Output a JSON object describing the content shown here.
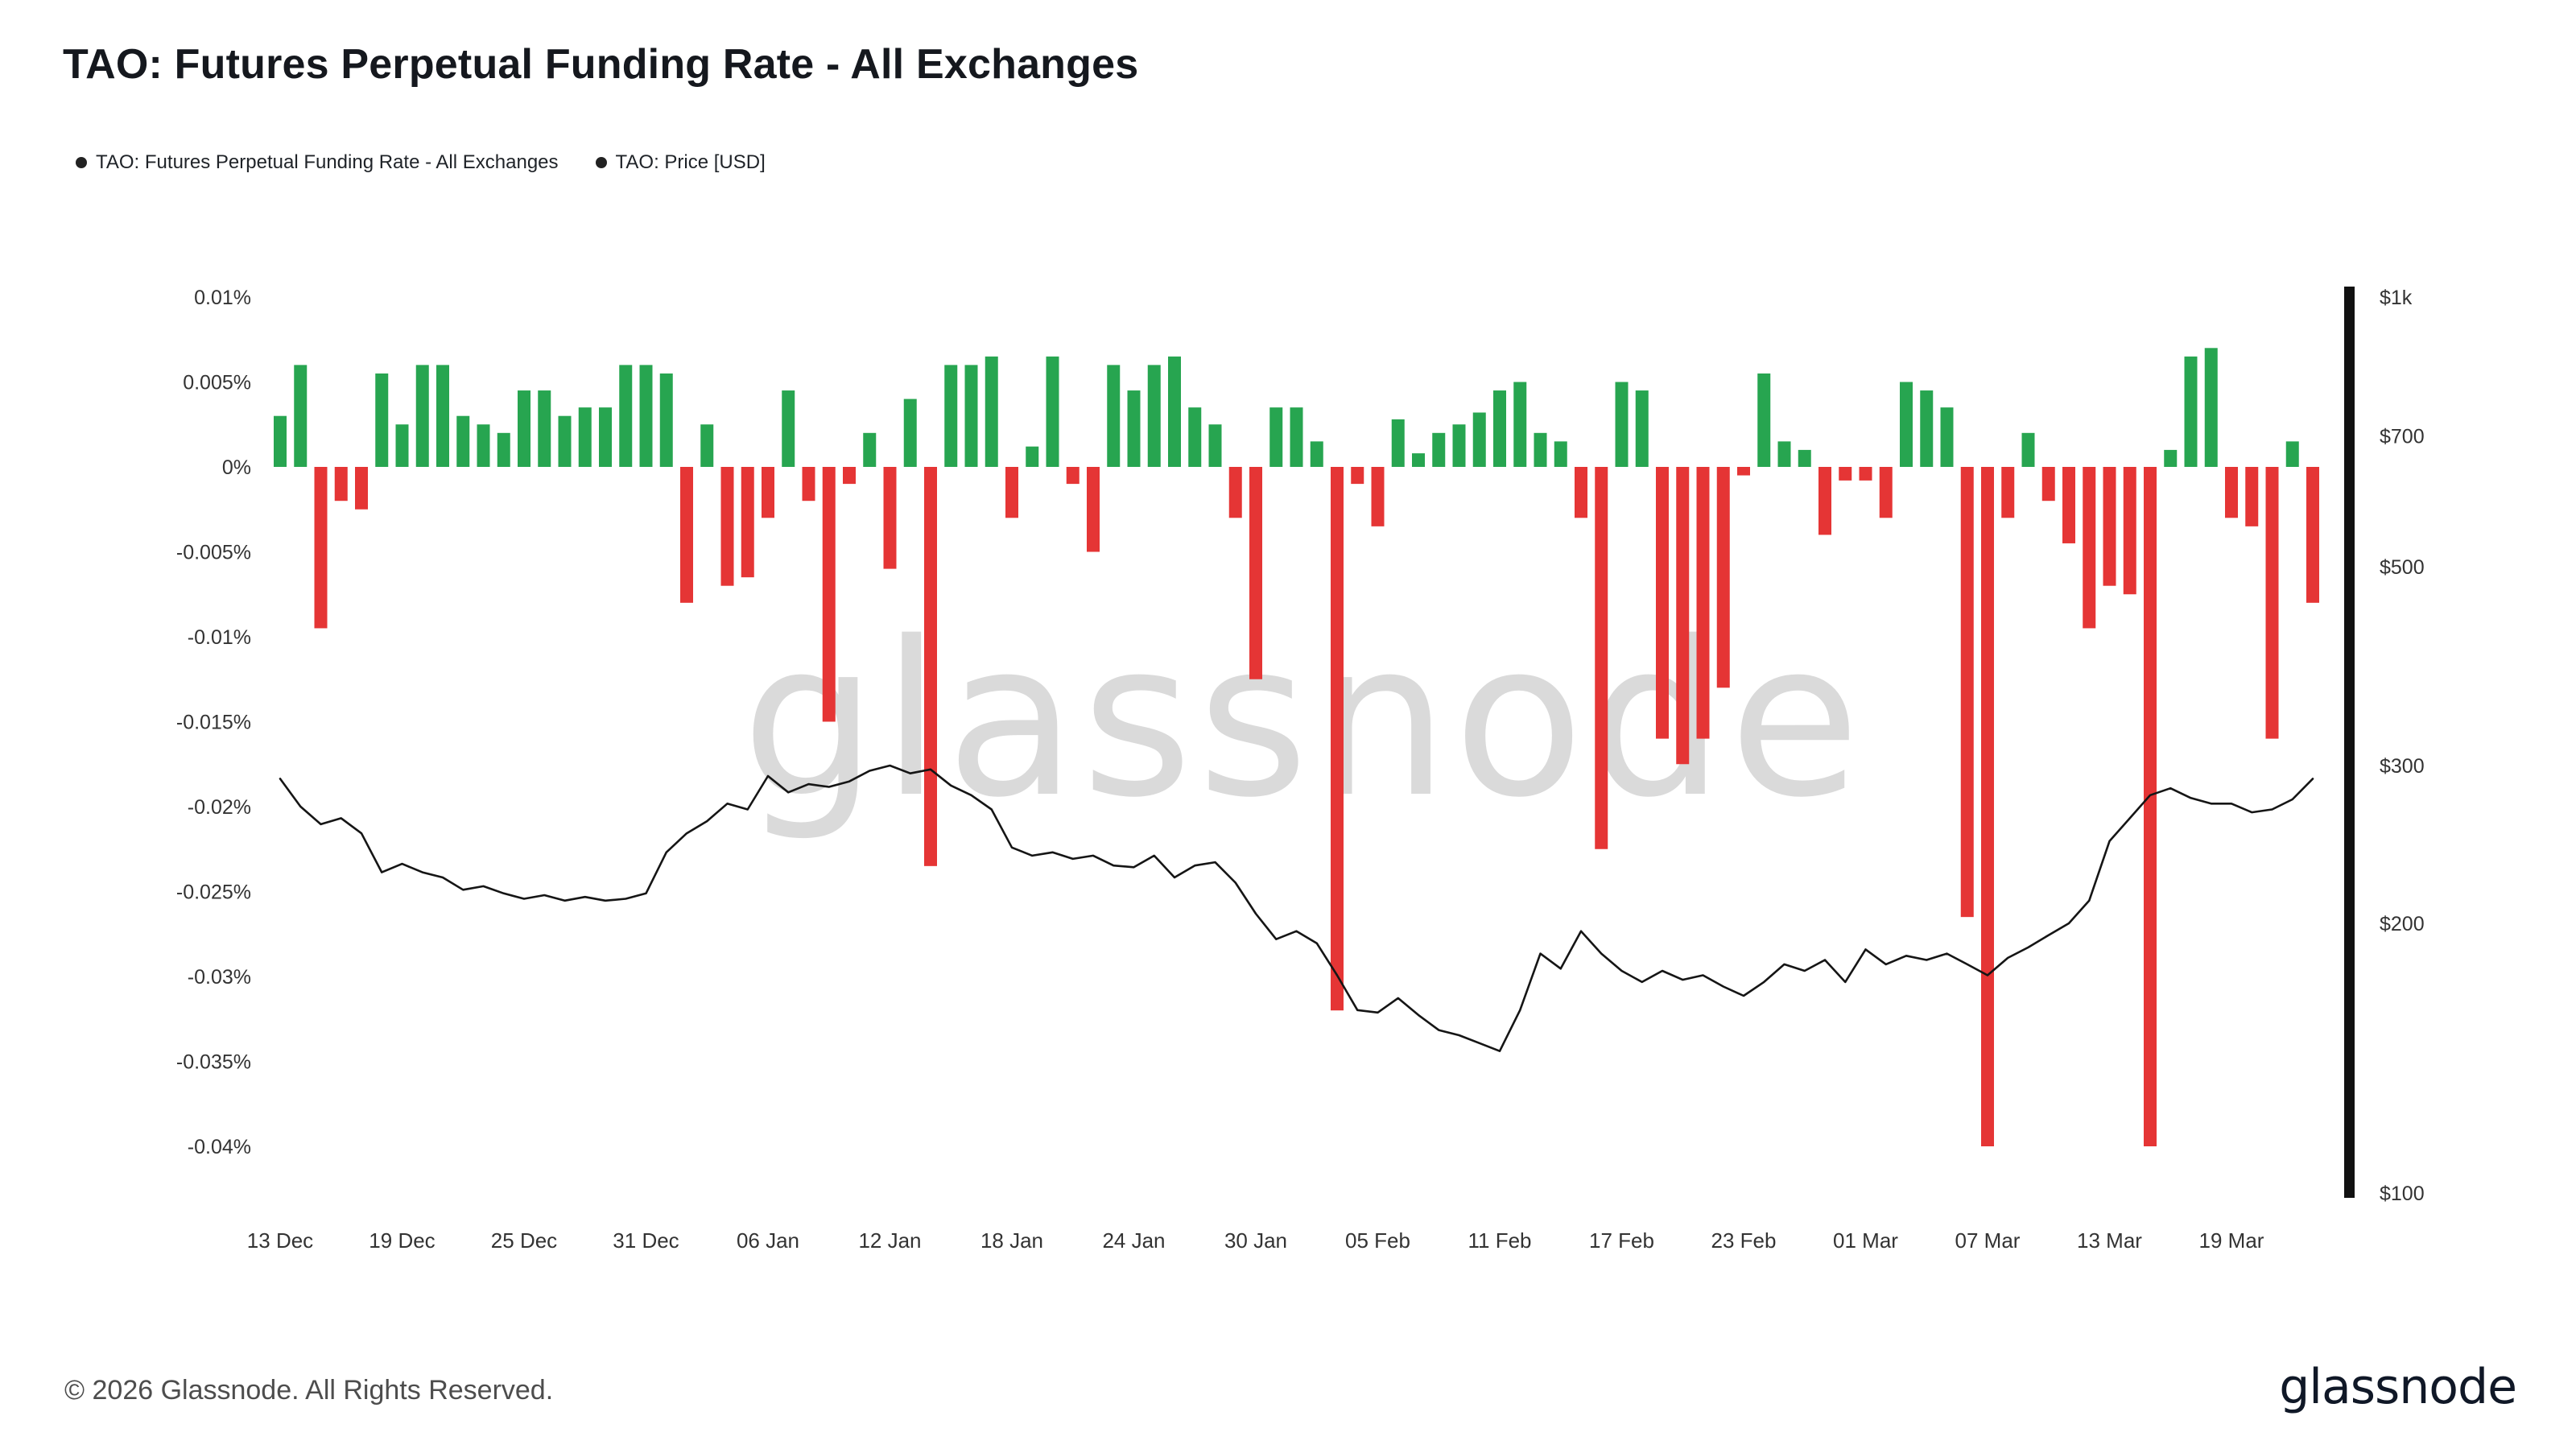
{
  "header": {
    "title": "TAO: Futures Perpetual Funding Rate - All Exchanges"
  },
  "legend": {
    "items": [
      {
        "label": "TAO: Futures Perpetual Funding Rate - All Exchanges",
        "color": "#222222"
      },
      {
        "label": "TAO: Price [USD]",
        "color": "#222222"
      }
    ]
  },
  "watermark": {
    "text": "glassnode"
  },
  "footer": {
    "copyright": "© 2026 Glassnode. All Rights Reserved.",
    "logo_text": "glassnode"
  },
  "colors": {
    "positive_bar": "#27a550",
    "negative_bar": "#e53535",
    "price_line": "#151515",
    "axis_text": "#333333",
    "right_axis_bar": "#111111",
    "watermark": "#dadada"
  },
  "chart_data": {
    "type": "bar+line",
    "title": "TAO: Futures Perpetual Funding Rate - All Exchanges",
    "left_axis": {
      "unit": "%",
      "scale": "linear",
      "range": [
        -0.0425,
        0.0115
      ],
      "ticks": [
        {
          "label": "0.01%",
          "value": 0.01
        },
        {
          "label": "0.005%",
          "value": 0.005
        },
        {
          "label": "0%",
          "value": 0
        },
        {
          "label": "-0.005%",
          "value": -0.005
        },
        {
          "label": "-0.01%",
          "value": -0.01
        },
        {
          "label": "-0.015%",
          "value": -0.015
        },
        {
          "label": "-0.02%",
          "value": -0.02
        },
        {
          "label": "-0.025%",
          "value": -0.025
        },
        {
          "label": "-0.03%",
          "value": -0.03
        },
        {
          "label": "-0.035%",
          "value": -0.035
        },
        {
          "label": "-0.04%",
          "value": -0.04
        }
      ]
    },
    "right_axis": {
      "unit": "USD",
      "scale": "log",
      "range": [
        100,
        1000
      ],
      "ticks": [
        {
          "label": "$1k",
          "value": 1000
        },
        {
          "label": "$700",
          "value": 700
        },
        {
          "label": "$500",
          "value": 500
        },
        {
          "label": "$300",
          "value": 300
        },
        {
          "label": "$200",
          "value": 200
        },
        {
          "label": "$100",
          "value": 100
        }
      ]
    },
    "x_tick_labels": [
      "13 Dec",
      "19 Dec",
      "25 Dec",
      "31 Dec",
      "06 Jan",
      "12 Jan",
      "18 Jan",
      "24 Jan",
      "30 Jan",
      "05 Feb",
      "11 Feb",
      "17 Feb",
      "23 Feb",
      "01 Mar",
      "07 Mar",
      "13 Mar",
      "19 Mar"
    ],
    "x_tick_indices": [
      0,
      6,
      12,
      18,
      24,
      30,
      36,
      42,
      48,
      54,
      60,
      66,
      72,
      78,
      84,
      90,
      96
    ],
    "categories": [
      "13 Dec",
      "14 Dec",
      "15 Dec",
      "16 Dec",
      "17 Dec",
      "18 Dec",
      "19 Dec",
      "20 Dec",
      "21 Dec",
      "22 Dec",
      "23 Dec",
      "24 Dec",
      "25 Dec",
      "26 Dec",
      "27 Dec",
      "28 Dec",
      "29 Dec",
      "30 Dec",
      "31 Dec",
      "01 Jan",
      "02 Jan",
      "03 Jan",
      "04 Jan",
      "05 Jan",
      "06 Jan",
      "07 Jan",
      "08 Jan",
      "09 Jan",
      "10 Jan",
      "11 Jan",
      "12 Jan",
      "13 Jan",
      "14 Jan",
      "15 Jan",
      "16 Jan",
      "17 Jan",
      "18 Jan",
      "19 Jan",
      "20 Jan",
      "21 Jan",
      "22 Jan",
      "23 Jan",
      "24 Jan",
      "25 Jan",
      "26 Jan",
      "27 Jan",
      "28 Jan",
      "29 Jan",
      "30 Jan",
      "31 Jan",
      "01 Feb",
      "02 Feb",
      "03 Feb",
      "04 Feb",
      "05 Feb",
      "06 Feb",
      "07 Feb",
      "08 Feb",
      "09 Feb",
      "10 Feb",
      "11 Feb",
      "12 Feb",
      "13 Feb",
      "14 Feb",
      "15 Feb",
      "16 Feb",
      "17 Feb",
      "18 Feb",
      "19 Feb",
      "20 Feb",
      "21 Feb",
      "22 Feb",
      "23 Feb",
      "24 Feb",
      "25 Feb",
      "26 Feb",
      "27 Feb",
      "28 Feb",
      "01 Mar",
      "02 Mar",
      "03 Mar",
      "04 Mar",
      "05 Mar",
      "06 Mar",
      "07 Mar",
      "08 Mar",
      "09 Mar",
      "10 Mar",
      "11 Mar",
      "12 Mar",
      "13 Mar",
      "14 Mar",
      "15 Mar",
      "16 Mar",
      "17 Mar",
      "18 Mar",
      "19 Mar",
      "20 Mar",
      "21 Mar",
      "22 Mar",
      "23 Mar"
    ],
    "series": [
      {
        "name": "TAO: Futures Perpetual Funding Rate - All Exchanges",
        "type": "bar",
        "axis": "left",
        "unit": "%",
        "values": [
          0.003,
          0.006,
          -0.0095,
          -0.002,
          -0.0025,
          0.0055,
          0.0025,
          0.006,
          0.006,
          0.003,
          0.0025,
          0.002,
          0.0045,
          0.0045,
          0.003,
          0.0035,
          0.0035,
          0.006,
          0.006,
          0.0055,
          -0.008,
          0.0025,
          -0.007,
          -0.0065,
          -0.003,
          0.0045,
          -0.002,
          -0.015,
          -0.001,
          0.002,
          -0.006,
          0.004,
          -0.0235,
          0.006,
          0.006,
          0.0065,
          -0.003,
          0.0012,
          0.0065,
          -0.001,
          -0.005,
          0.006,
          0.0045,
          0.006,
          0.0065,
          0.0035,
          0.0025,
          -0.003,
          -0.0125,
          0.0035,
          0.0035,
          0.0015,
          -0.032,
          -0.001,
          -0.0035,
          0.0028,
          0.0008,
          0.002,
          0.0025,
          0.0032,
          0.0045,
          0.005,
          0.002,
          0.0015,
          -0.003,
          -0.0225,
          0.005,
          0.0045,
          -0.016,
          -0.0175,
          -0.016,
          -0.013,
          -0.0005,
          0.0055,
          0.0015,
          0.001,
          -0.004,
          -0.0008,
          -0.0008,
          -0.003,
          0.005,
          0.0045,
          0.0035,
          -0.0265,
          -0.04,
          -0.003,
          0.002,
          -0.002,
          -0.0045,
          -0.0095,
          -0.007,
          -0.0075,
          -0.04,
          0.001,
          0.0065,
          0.007,
          -0.003,
          -0.0035,
          -0.016,
          0.0015,
          -0.008
        ]
      },
      {
        "name": "TAO: Price [USD]",
        "type": "line",
        "axis": "right",
        "unit": "USD",
        "values": [
          290,
          270,
          258,
          262,
          252,
          228,
          233,
          228,
          225,
          218,
          220,
          216,
          213,
          215,
          212,
          214,
          212,
          213,
          216,
          240,
          252,
          260,
          272,
          268,
          292,
          280,
          286,
          284,
          288,
          296,
          300,
          294,
          297,
          285,
          278,
          268,
          243,
          238,
          240,
          236,
          238,
          232,
          231,
          238,
          225,
          232,
          234,
          222,
          205,
          192,
          196,
          190,
          175,
          160,
          159,
          165,
          158,
          152,
          150,
          147,
          144,
          160,
          185,
          178,
          196,
          185,
          177,
          172,
          177,
          173,
          175,
          170,
          166,
          172,
          180,
          177,
          182,
          172,
          187,
          180,
          184,
          182,
          185,
          180,
          175,
          183,
          188,
          194,
          200,
          212,
          247,
          262,
          278,
          283,
          276,
          272,
          272,
          266,
          268,
          275,
          290
        ]
      }
    ]
  }
}
